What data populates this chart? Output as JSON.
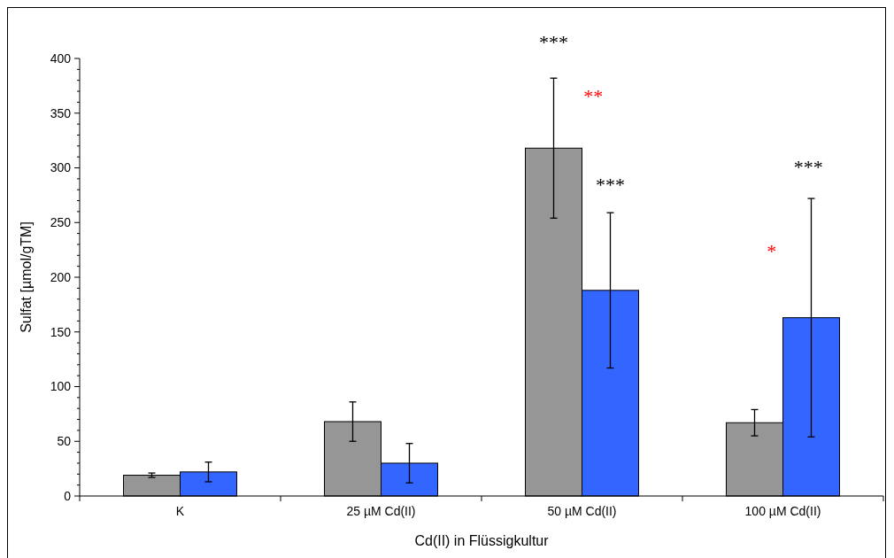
{
  "chart_data": {
    "type": "bar",
    "xlabel": "Cd(II) in Flüssigkultur",
    "ylabel": "Sulfat [µmol/gTM]",
    "categories": [
      "K",
      "25 µM Cd(II)",
      "50 µM Cd(II)",
      "100 µM Cd(II)"
    ],
    "series": [
      {
        "color": "#969696",
        "values": [
          19,
          68,
          318,
          67
        ],
        "errors": [
          2,
          18,
          64,
          12
        ]
      },
      {
        "color": "#3366ff",
        "values": [
          22,
          30,
          188,
          163
        ],
        "errors": [
          9,
          18,
          71,
          109
        ]
      }
    ],
    "ylim": [
      0,
      400
    ],
    "yticks": [
      0,
      50,
      100,
      150,
      200,
      250,
      300,
      350,
      400
    ],
    "grid": false,
    "annotations": [
      "***",
      "**",
      "***",
      "*",
      "***"
    ]
  }
}
